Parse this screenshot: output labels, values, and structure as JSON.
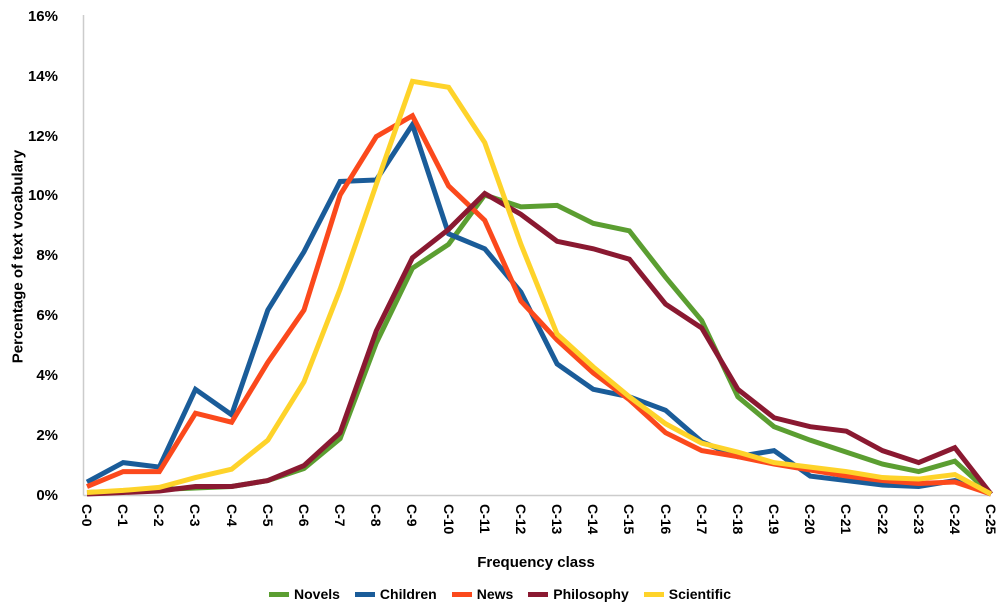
{
  "chart_data": {
    "type": "line",
    "title": "",
    "xlabel": "Frequency class",
    "ylabel": "Percentage of text vocabulary",
    "ylim": [
      0,
      16
    ],
    "grid": false,
    "legend_position": "bottom",
    "categories": [
      "C-0",
      "C-1",
      "C-2",
      "C-3",
      "C-4",
      "C-5",
      "C-6",
      "C-7",
      "C-8",
      "C-9",
      "C-10",
      "C-11",
      "C-12",
      "C-13",
      "C-14",
      "C-15",
      "C-16",
      "C-17",
      "C-18",
      "C-19",
      "C-20",
      "C-21",
      "C-22",
      "C-23",
      "C-24",
      "C-25"
    ],
    "y_ticks": [
      {
        "value": 0,
        "label": "0%"
      },
      {
        "value": 2,
        "label": "2%"
      },
      {
        "value": 4,
        "label": "4%"
      },
      {
        "value": 6,
        "label": "6%"
      },
      {
        "value": 8,
        "label": "8%"
      },
      {
        "value": 10,
        "label": "10%"
      },
      {
        "value": 12,
        "label": "12%"
      },
      {
        "value": 14,
        "label": "14%"
      },
      {
        "value": 16,
        "label": "16%"
      }
    ],
    "series": [
      {
        "name": "Novels",
        "color": "#5b9e31",
        "values": [
          0.1,
          0.15,
          0.2,
          0.25,
          0.3,
          0.5,
          0.9,
          1.9,
          5.1,
          7.6,
          8.4,
          10.05,
          9.65,
          9.7,
          9.1,
          8.85,
          7.3,
          5.85,
          3.3,
          2.3,
          1.85,
          1.45,
          1.05,
          0.8,
          1.15,
          0.05
        ]
      },
      {
        "name": "Children",
        "color": "#1a5c99",
        "values": [
          0.45,
          1.1,
          0.95,
          3.55,
          2.7,
          6.2,
          8.15,
          10.5,
          10.55,
          12.4,
          8.75,
          8.25,
          6.8,
          4.4,
          3.55,
          3.3,
          2.85,
          1.8,
          1.3,
          1.5,
          0.65,
          0.5,
          0.35,
          0.3,
          0.5,
          0.05
        ]
      },
      {
        "name": "News",
        "color": "#fb491c",
        "values": [
          0.3,
          0.8,
          0.8,
          2.75,
          2.45,
          4.45,
          6.2,
          10.05,
          12.0,
          12.7,
          10.35,
          9.2,
          6.5,
          5.2,
          4.1,
          3.2,
          2.1,
          1.5,
          1.3,
          1.05,
          0.85,
          0.65,
          0.5,
          0.4,
          0.45,
          0.05
        ]
      },
      {
        "name": "Philosophy",
        "color": "#8a1931",
        "values": [
          0.05,
          0.1,
          0.15,
          0.3,
          0.3,
          0.5,
          1.0,
          2.1,
          5.5,
          7.95,
          8.9,
          10.1,
          9.4,
          8.5,
          8.25,
          7.9,
          6.4,
          5.6,
          3.55,
          2.6,
          2.3,
          2.15,
          1.5,
          1.1,
          1.6,
          0.05
        ]
      },
      {
        "name": "Scientific",
        "color": "#fed32a",
        "values": [
          0.1,
          0.17,
          0.27,
          0.6,
          0.88,
          1.85,
          3.8,
          6.9,
          10.4,
          13.85,
          13.65,
          11.8,
          8.4,
          5.4,
          4.3,
          3.3,
          2.4,
          1.75,
          1.45,
          1.1,
          0.95,
          0.8,
          0.6,
          0.55,
          0.7,
          0.05
        ]
      }
    ],
    "axis_color": "#cccccc"
  }
}
